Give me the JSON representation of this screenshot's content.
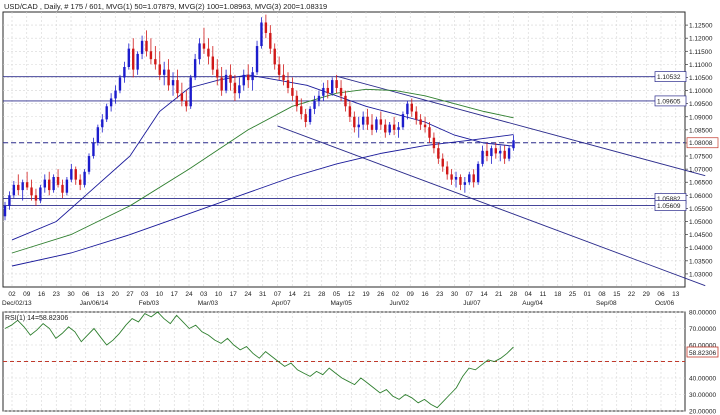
{
  "chart_data": [
    {
      "type": "candlestick",
      "title": "USD/CAD , Daily, # 175 / 601, MVG(1) 50=1.07879, MVG(2) 100=1.08963, MVG(3) 200=1.08319",
      "symbol": "USD/CAD",
      "ylim": [
        1.025,
        1.13
      ],
      "y_ticks": [
        1.03,
        1.035,
        1.04,
        1.045,
        1.05,
        1.055,
        1.06,
        1.065,
        1.07,
        1.075,
        1.08,
        1.085,
        1.09,
        1.095,
        1.1,
        1.105,
        1.11,
        1.115,
        1.12,
        1.125
      ],
      "y_tick_labels": [
        "1.03000",
        "1.03500",
        "1.04000",
        "1.04500",
        "1.05000",
        "1.05500",
        "1.06000",
        "1.06500",
        "1.07000",
        "1.07500",
        "1.08000",
        "1.08500",
        "1.09000",
        "1.09500",
        "1.10000",
        "1.10500",
        "1.11000",
        "1.11500",
        "1.12000",
        "1.12500"
      ],
      "x_day_labels": [
        "02",
        "09",
        "16",
        "23",
        "30",
        "06",
        "13",
        "20",
        "27",
        "03",
        "10",
        "17",
        "24",
        "03",
        "10",
        "17",
        "24",
        "31",
        "07",
        "14",
        "21",
        "28",
        "05",
        "12",
        "19",
        "26",
        "02",
        "09",
        "16",
        "23",
        "30",
        "07",
        "14",
        "21",
        "28",
        "04",
        "11",
        "18",
        "25",
        "01",
        "08",
        "15",
        "22",
        "29",
        "06",
        "13"
      ],
      "x_month_labels": [
        {
          "label": "Dec/02/13",
          "index": 0
        },
        {
          "label": "Jan/06/14",
          "index": 5
        },
        {
          "label": "Feb/03",
          "index": 9
        },
        {
          "label": "Mar/03",
          "index": 13
        },
        {
          "label": "Apr/07",
          "index": 18
        },
        {
          "label": "May/05",
          "index": 22
        },
        {
          "label": "Jun/02",
          "index": 26
        },
        {
          "label": "Jul/07",
          "index": 31
        },
        {
          "label": "Aug/04",
          "index": 35
        },
        {
          "label": "Sep/08",
          "index": 40
        },
        {
          "label": "Oct/06",
          "index": 44
        }
      ],
      "horizontal_lines": [
        {
          "value": 1.10532,
          "label": "1.10532",
          "style": "solid"
        },
        {
          "value": 1.09605,
          "label": "1.09605",
          "style": "solid"
        },
        {
          "value": 1.08008,
          "label": "1.08008",
          "style": "dashed",
          "highlight": true
        },
        {
          "value": 1.05882,
          "label": "1.05882",
          "style": "solid"
        },
        {
          "value": 1.05609,
          "label": "1.05609",
          "style": "solid"
        }
      ],
      "trend_lines": [
        {
          "from": [
            18,
            1.0865
          ],
          "to": [
            47,
            1.0255
          ]
        },
        {
          "from": [
            22,
            1.1055
          ],
          "to": [
            47,
            1.0675
          ]
        }
      ],
      "moving_averages": [
        {
          "name": "MVG(1) 50",
          "last": 1.07879,
          "color": "#1a1a9a",
          "points": [
            [
              0,
              1.043
            ],
            [
              3,
              1.05
            ],
            [
              5,
              1.06
            ],
            [
              8,
              1.075
            ],
            [
              10,
              1.092
            ],
            [
              12,
              1.101
            ],
            [
              14,
              1.104
            ],
            [
              16,
              1.106
            ],
            [
              18,
              1.104
            ],
            [
              20,
              1.102
            ],
            [
              22,
              1.098
            ],
            [
              24,
              1.094
            ],
            [
              26,
              1.091
            ],
            [
              28,
              1.088
            ],
            [
              30,
              1.083
            ],
            [
              32,
              1.08
            ],
            [
              34,
              1.0788
            ]
          ]
        },
        {
          "name": "MVG(2) 100",
          "last": 1.08963,
          "color": "#2f7f2f",
          "points": [
            [
              0,
              1.038
            ],
            [
              4,
              1.045
            ],
            [
              8,
              1.056
            ],
            [
              12,
              1.07
            ],
            [
              16,
              1.085
            ],
            [
              19,
              1.094
            ],
            [
              22,
              1.099
            ],
            [
              24,
              1.1005
            ],
            [
              26,
              1.1
            ],
            [
              28,
              1.098
            ],
            [
              30,
              1.095
            ],
            [
              32,
              1.092
            ],
            [
              34,
              1.0896
            ]
          ]
        },
        {
          "name": "MVG(3) 200",
          "last": 1.08319,
          "color": "#1a1a9a",
          "points": [
            [
              0,
              1.033
            ],
            [
              4,
              1.038
            ],
            [
              8,
              1.045
            ],
            [
              12,
              1.053
            ],
            [
              16,
              1.061
            ],
            [
              19,
              1.067
            ],
            [
              22,
              1.072
            ],
            [
              25,
              1.076
            ],
            [
              28,
              1.079
            ],
            [
              31,
              1.081
            ],
            [
              34,
              1.0832
            ]
          ]
        }
      ],
      "candles": [
        [
          1.052,
          1.0575,
          1.0505,
          1.056
        ],
        [
          1.056,
          1.0615,
          1.0545,
          1.06
        ],
        [
          1.06,
          1.0655,
          1.059,
          1.064
        ],
        [
          1.064,
          1.068,
          1.06,
          1.062
        ],
        [
          1.062,
          1.066,
          1.058,
          1.065
        ],
        [
          1.065,
          1.069,
          1.062,
          1.063
        ],
        [
          1.063,
          1.066,
          1.058,
          1.06
        ],
        [
          1.06,
          1.0625,
          1.056,
          1.058
        ],
        [
          1.058,
          1.064,
          1.057,
          1.063
        ],
        [
          1.063,
          1.068,
          1.061,
          1.066
        ],
        [
          1.066,
          1.069,
          1.06,
          1.062
        ],
        [
          1.062,
          1.068,
          1.061,
          1.067
        ],
        [
          1.067,
          1.07,
          1.063,
          1.064
        ],
        [
          1.064,
          1.066,
          1.059,
          1.061
        ],
        [
          1.061,
          1.067,
          1.06,
          1.066
        ],
        [
          1.066,
          1.072,
          1.065,
          1.07
        ],
        [
          1.07,
          1.071,
          1.064,
          1.066
        ],
        [
          1.066,
          1.068,
          1.062,
          1.064
        ],
        [
          1.064,
          1.07,
          1.063,
          1.069
        ],
        [
          1.069,
          1.076,
          1.068,
          1.075
        ],
        [
          1.075,
          1.082,
          1.074,
          1.08
        ],
        [
          1.08,
          1.087,
          1.079,
          1.086
        ],
        [
          1.086,
          1.091,
          1.084,
          1.089
        ],
        [
          1.089,
          1.095,
          1.088,
          1.094
        ],
        [
          1.094,
          1.099,
          1.092,
          1.097
        ],
        [
          1.097,
          1.102,
          1.095,
          1.1
        ],
        [
          1.1,
          1.106,
          1.099,
          1.105
        ],
        [
          1.105,
          1.111,
          1.103,
          1.109
        ],
        [
          1.109,
          1.118,
          1.108,
          1.116
        ],
        [
          1.116,
          1.12,
          1.105,
          1.108
        ],
        [
          1.108,
          1.115,
          1.106,
          1.114
        ],
        [
          1.114,
          1.121,
          1.112,
          1.119
        ],
        [
          1.119,
          1.123,
          1.113,
          1.115
        ],
        [
          1.115,
          1.12,
          1.11,
          1.112
        ],
        [
          1.112,
          1.117,
          1.108,
          1.11
        ],
        [
          1.11,
          1.115,
          1.104,
          1.106
        ],
        [
          1.106,
          1.111,
          1.102,
          1.108
        ],
        [
          1.108,
          1.112,
          1.1,
          1.102
        ],
        [
          1.102,
          1.107,
          1.098,
          1.104
        ],
        [
          1.104,
          1.108,
          1.097,
          1.099
        ],
        [
          1.099,
          1.103,
          1.094,
          1.096
        ],
        [
          1.096,
          1.1,
          1.092,
          1.094
        ],
        [
          1.094,
          1.106,
          1.093,
          1.105
        ],
        [
          1.105,
          1.114,
          1.104,
          1.112
        ],
        [
          1.112,
          1.12,
          1.11,
          1.118
        ],
        [
          1.118,
          1.124,
          1.114,
          1.116
        ],
        [
          1.116,
          1.12,
          1.11,
          1.113
        ],
        [
          1.113,
          1.117,
          1.106,
          1.108
        ],
        [
          1.108,
          1.112,
          1.102,
          1.105
        ],
        [
          1.105,
          1.109,
          1.098,
          1.1
        ],
        [
          1.1,
          1.108,
          1.099,
          1.106
        ],
        [
          1.106,
          1.11,
          1.1,
          1.103
        ],
        [
          1.103,
          1.106,
          1.096,
          1.099
        ],
        [
          1.099,
          1.105,
          1.097,
          1.102
        ],
        [
          1.102,
          1.108,
          1.1,
          1.106
        ],
        [
          1.106,
          1.11,
          1.101,
          1.104
        ],
        [
          1.104,
          1.109,
          1.1,
          1.107
        ],
        [
          1.107,
          1.119,
          1.106,
          1.117
        ],
        [
          1.117,
          1.128,
          1.116,
          1.126
        ],
        [
          1.126,
          1.129,
          1.12,
          1.122
        ],
        [
          1.122,
          1.125,
          1.114,
          1.116
        ],
        [
          1.116,
          1.118,
          1.108,
          1.11
        ],
        [
          1.11,
          1.113,
          1.104,
          1.106
        ],
        [
          1.106,
          1.11,
          1.102,
          1.104
        ],
        [
          1.104,
          1.107,
          1.099,
          1.101
        ],
        [
          1.101,
          1.105,
          1.096,
          1.098
        ],
        [
          1.098,
          1.1,
          1.092,
          1.094
        ],
        [
          1.094,
          1.097,
          1.089,
          1.091
        ],
        [
          1.091,
          1.093,
          1.086,
          1.088
        ],
        [
          1.088,
          1.094,
          1.087,
          1.093
        ],
        [
          1.093,
          1.098,
          1.091,
          1.096
        ],
        [
          1.096,
          1.1,
          1.094,
          1.098
        ],
        [
          1.098,
          1.103,
          1.096,
          1.101
        ],
        [
          1.101,
          1.104,
          1.097,
          1.099
        ],
        [
          1.099,
          1.105,
          1.098,
          1.104
        ],
        [
          1.104,
          1.106,
          1.099,
          1.101
        ],
        [
          1.101,
          1.104,
          1.096,
          1.098
        ],
        [
          1.098,
          1.1,
          1.092,
          1.094
        ],
        [
          1.094,
          1.096,
          1.088,
          1.09
        ],
        [
          1.09,
          1.092,
          1.084,
          1.086
        ],
        [
          1.086,
          1.09,
          1.082,
          1.087
        ],
        [
          1.087,
          1.092,
          1.085,
          1.09
        ],
        [
          1.09,
          1.093,
          1.085,
          1.087
        ],
        [
          1.087,
          1.091,
          1.083,
          1.085
        ],
        [
          1.085,
          1.09,
          1.084,
          1.089
        ],
        [
          1.089,
          1.092,
          1.085,
          1.087
        ],
        [
          1.087,
          1.089,
          1.082,
          1.084
        ],
        [
          1.084,
          1.088,
          1.083,
          1.087
        ],
        [
          1.087,
          1.09,
          1.083,
          1.085
        ],
        [
          1.085,
          1.088,
          1.082,
          1.086
        ],
        [
          1.086,
          1.092,
          1.085,
          1.091
        ],
        [
          1.091,
          1.096,
          1.089,
          1.095
        ],
        [
          1.095,
          1.097,
          1.09,
          1.092
        ],
        [
          1.092,
          1.094,
          1.087,
          1.089
        ],
        [
          1.089,
          1.091,
          1.085,
          1.087
        ],
        [
          1.087,
          1.09,
          1.084,
          1.086
        ],
        [
          1.086,
          1.088,
          1.08,
          1.082
        ],
        [
          1.082,
          1.084,
          1.076,
          1.078
        ],
        [
          1.078,
          1.08,
          1.072,
          1.074
        ],
        [
          1.074,
          1.076,
          1.069,
          1.071
        ],
        [
          1.071,
          1.073,
          1.066,
          1.068
        ],
        [
          1.068,
          1.07,
          1.064,
          1.066
        ],
        [
          1.066,
          1.069,
          1.063,
          1.067
        ],
        [
          1.067,
          1.068,
          1.062,
          1.064
        ],
        [
          1.064,
          1.067,
          1.061,
          1.065
        ],
        [
          1.065,
          1.069,
          1.064,
          1.068
        ],
        [
          1.068,
          1.07,
          1.063,
          1.065
        ],
        [
          1.065,
          1.073,
          1.064,
          1.072
        ],
        [
          1.072,
          1.079,
          1.071,
          1.077
        ],
        [
          1.077,
          1.08,
          1.073,
          1.075
        ],
        [
          1.075,
          1.079,
          1.072,
          1.078
        ],
        [
          1.078,
          1.08,
          1.074,
          1.076
        ],
        [
          1.076,
          1.079,
          1.073,
          1.077
        ],
        [
          1.077,
          1.079,
          1.072,
          1.074
        ],
        [
          1.074,
          1.079,
          1.073,
          1.078
        ],
        [
          1.078,
          1.083,
          1.077,
          1.081
        ]
      ]
    },
    {
      "type": "line",
      "title": "RSI(1) 14=58.82306",
      "series": [
        {
          "name": "RSI(1) 14",
          "color": "#2f7f2f",
          "values": [
            70,
            72,
            75,
            71,
            66,
            69,
            73,
            70,
            64,
            67,
            71,
            68,
            62,
            66,
            70,
            65,
            60,
            63,
            67,
            72,
            76,
            74,
            79,
            77,
            80,
            76,
            73,
            78,
            74,
            70,
            72,
            68,
            66,
            63,
            61,
            64,
            60,
            57,
            59,
            55,
            52,
            56,
            53,
            50,
            47,
            49,
            45,
            43,
            41,
            44,
            42,
            46,
            43,
            40,
            38,
            36,
            40,
            37,
            34,
            31,
            33,
            29,
            27,
            30,
            28,
            25,
            27,
            24,
            22,
            26,
            30,
            34,
            41,
            46,
            45,
            48,
            51,
            50,
            52,
            55,
            58.8
          ]
        }
      ],
      "ylim": [
        20,
        80
      ],
      "y_ticks": [
        20,
        30,
        40,
        50,
        60,
        70,
        80
      ],
      "y_tick_labels": [
        "20.00000",
        "30.00000",
        "40.00000",
        "50.00000",
        "60.00000",
        "70.00000",
        "80.00000"
      ],
      "reference_line": {
        "value": 50,
        "style": "dashed"
      },
      "current_label": "58.82306"
    }
  ]
}
